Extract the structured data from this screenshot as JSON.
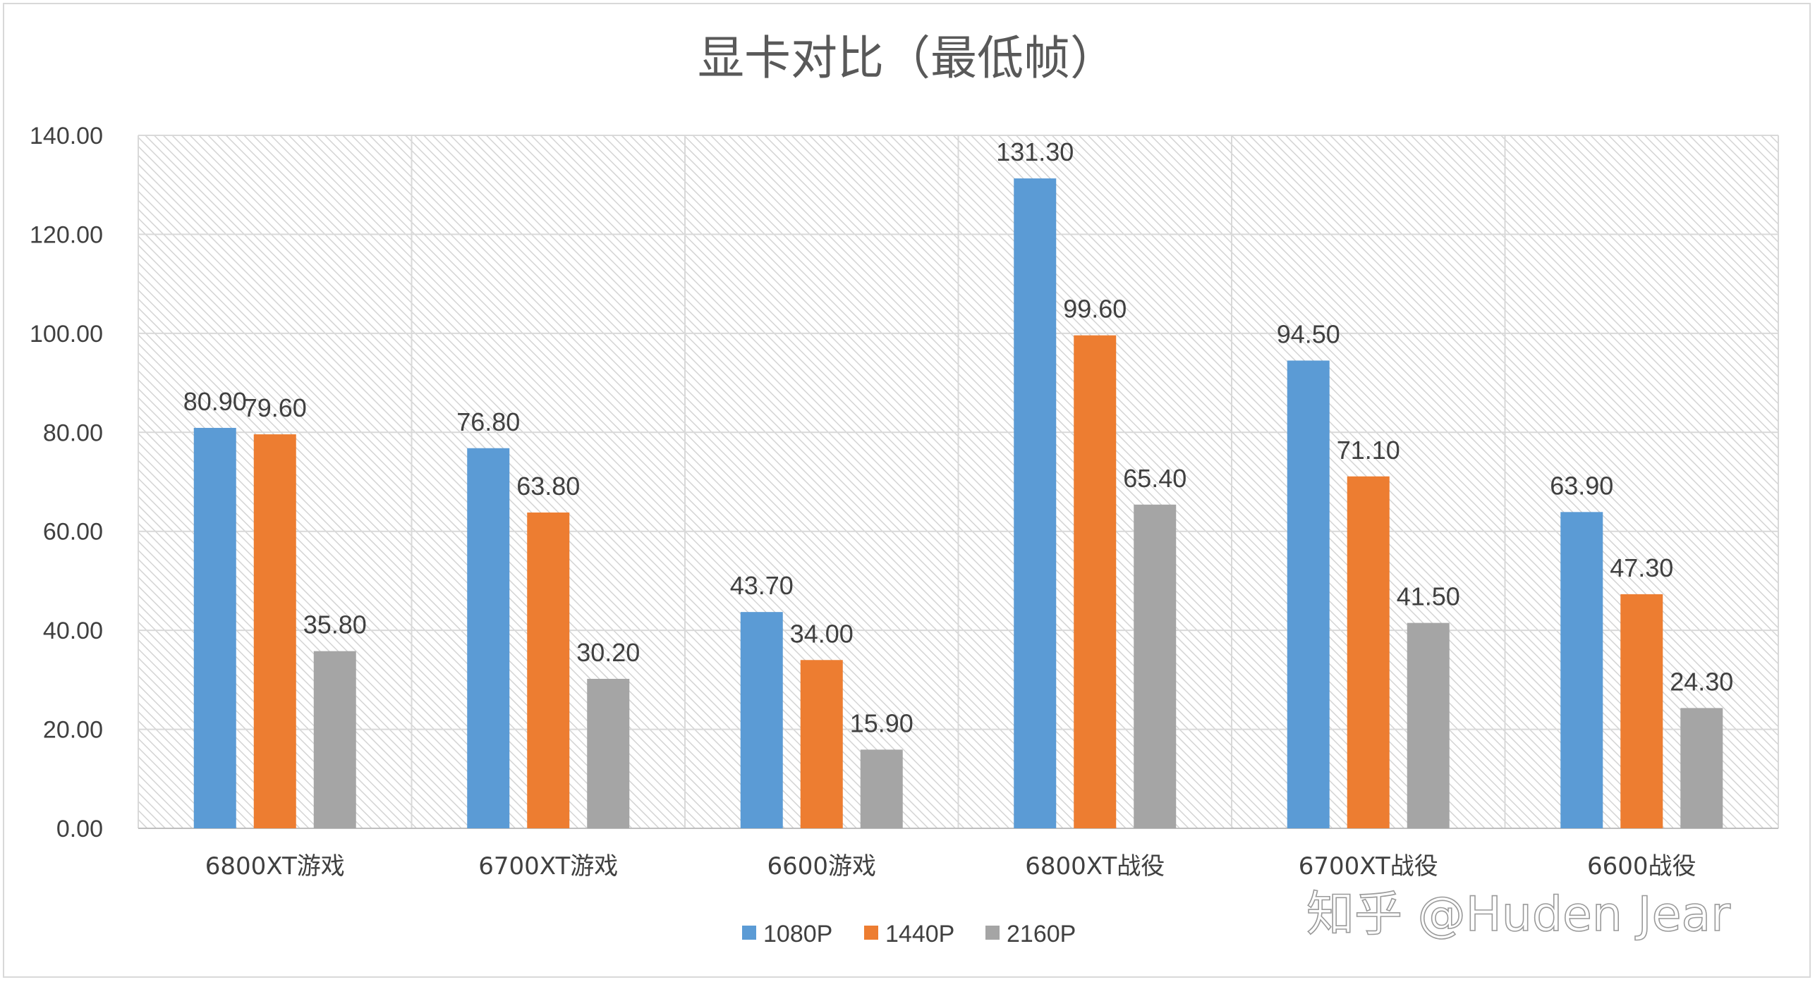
{
  "chart_data": {
    "type": "bar",
    "title": "显卡对比（最低帧）",
    "categories": [
      "6800XT游戏",
      "6700XT游戏",
      "6600游戏",
      "6800XT战役",
      "6700XT战役",
      "6600战役"
    ],
    "series": [
      {
        "name": "1080P",
        "color": "#5b9bd5",
        "values": [
          80.9,
          76.8,
          43.7,
          131.3,
          94.5,
          63.9
        ]
      },
      {
        "name": "1440P",
        "color": "#ed7d31",
        "values": [
          79.6,
          63.8,
          34.0,
          99.6,
          71.1,
          47.3
        ]
      },
      {
        "name": "2160P",
        "color": "#a5a5a5",
        "values": [
          35.8,
          30.2,
          15.9,
          65.4,
          41.5,
          24.3
        ]
      }
    ],
    "data_labels": [
      [
        "80.90",
        "76.80",
        "43.70",
        "131.30",
        "94.50",
        "63.90"
      ],
      [
        "79.60",
        "63.80",
        "34.00",
        "99.60",
        "71.10",
        "47.30"
      ],
      [
        "35.80",
        "30.20",
        "15.90",
        "65.40",
        "41.50",
        "24.30"
      ]
    ],
    "ylim": [
      0,
      140
    ],
    "yticks": [
      "0.00",
      "20.00",
      "40.00",
      "60.00",
      "80.00",
      "100.00",
      "120.00",
      "140.00"
    ],
    "grid": true,
    "plot_background": "diagonal hatch light gray",
    "legend_position": "bottom",
    "xlabel": "",
    "ylabel": ""
  },
  "watermark": "知乎 @Huden Jear"
}
